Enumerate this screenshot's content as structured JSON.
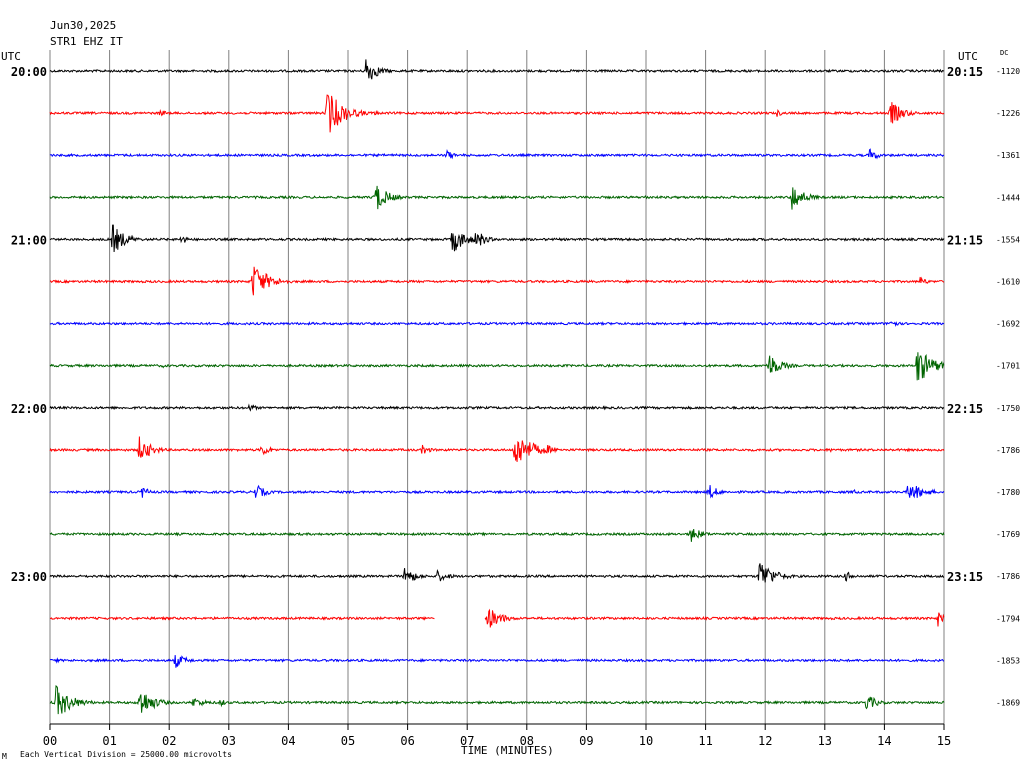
{
  "header": {
    "date": "Jun30,2025",
    "station": "STR1 EHZ IT",
    "left_zone": "UTC",
    "right_zone": "UTC",
    "dc_label": "DC"
  },
  "footer": {
    "mark": "M",
    "scale_note": "Each Vertical Division = 25000.00 microvolts"
  },
  "colors": {
    "grid": "#808080",
    "traces": [
      "#000000",
      "#ff0000",
      "#0000ff",
      "#006400"
    ]
  },
  "chart_data": {
    "type": "line",
    "title": "",
    "xlabel": "TIME (MINUTES)",
    "ylabel": "",
    "xlim": [
      0,
      15
    ],
    "x_ticks": [
      "00",
      "01",
      "02",
      "03",
      "04",
      "05",
      "06",
      "07",
      "08",
      "09",
      "10",
      "11",
      "12",
      "13",
      "14",
      "15"
    ],
    "rows": 16,
    "left_hour_labels": [
      {
        "row": 0,
        "label": "20:00"
      },
      {
        "row": 4,
        "label": "21:00"
      },
      {
        "row": 8,
        "label": "22:00"
      },
      {
        "row": 12,
        "label": "23:00"
      }
    ],
    "right_hour_labels": [
      {
        "row": 0,
        "label": "20:15"
      },
      {
        "row": 4,
        "label": "21:15"
      },
      {
        "row": 8,
        "label": "22:15"
      },
      {
        "row": 12,
        "label": "23:15"
      }
    ],
    "dc_offsets": [
      "-1120",
      "-1226",
      "-1361",
      "-1444",
      "-1554",
      "-1610",
      "-1692",
      "-1701",
      "-1750",
      "-1786",
      "-1780",
      "-1769",
      "-1786",
      "-1794",
      "-1853",
      "-1869"
    ],
    "series": [
      {
        "events": [
          {
            "t": 0.8,
            "amp": 0.12,
            "dur": 0.12
          },
          {
            "t": 5.3,
            "amp": 0.9,
            "dur": 0.3
          }
        ]
      },
      {
        "events": [
          {
            "t": 1.85,
            "amp": 0.2,
            "dur": 0.25
          },
          {
            "t": 4.65,
            "amp": 1.4,
            "dur": 0.45
          },
          {
            "t": 5.45,
            "amp": 0.15,
            "dur": 0.15
          },
          {
            "t": 12.2,
            "amp": 0.2,
            "dur": 0.2
          },
          {
            "t": 14.1,
            "amp": 0.75,
            "dur": 0.35
          }
        ]
      },
      {
        "events": [
          {
            "t": 6.65,
            "amp": 0.3,
            "dur": 0.25
          },
          {
            "t": 8.75,
            "amp": 0.1,
            "dur": 0.1
          },
          {
            "t": 13.75,
            "amp": 0.4,
            "dur": 0.25
          }
        ]
      },
      {
        "events": [
          {
            "t": 5.45,
            "amp": 0.9,
            "dur": 0.35
          },
          {
            "t": 10.0,
            "amp": 0.15,
            "dur": 0.2
          },
          {
            "t": 12.45,
            "amp": 0.8,
            "dur": 0.35
          }
        ]
      },
      {
        "events": [
          {
            "t": 1.05,
            "amp": 0.9,
            "dur": 0.35
          },
          {
            "t": 2.2,
            "amp": 0.3,
            "dur": 0.2
          },
          {
            "t": 6.75,
            "amp": 0.8,
            "dur": 0.4
          },
          {
            "t": 7.15,
            "amp": 0.65,
            "dur": 0.25
          }
        ]
      },
      {
        "events": [
          {
            "t": 3.4,
            "amp": 1.05,
            "dur": 0.45
          },
          {
            "t": 11.5,
            "amp": 0.1,
            "dur": 0.1
          },
          {
            "t": 14.6,
            "amp": 0.3,
            "dur": 0.2
          }
        ]
      },
      {
        "events": [
          {
            "t": 14.1,
            "amp": 0.3,
            "dur": 0.2
          }
        ]
      },
      {
        "events": [
          {
            "t": 1.9,
            "amp": 0.12,
            "dur": 0.15
          },
          {
            "t": 12.05,
            "amp": 0.75,
            "dur": 0.35
          },
          {
            "t": 14.55,
            "amp": 1.1,
            "dur": 0.45
          }
        ]
      },
      {
        "events": [
          {
            "t": 3.35,
            "amp": 0.25,
            "dur": 0.2
          }
        ]
      },
      {
        "events": [
          {
            "t": 1.5,
            "amp": 0.75,
            "dur": 0.35
          },
          {
            "t": 3.55,
            "amp": 0.4,
            "dur": 0.25
          },
          {
            "t": 6.25,
            "amp": 0.35,
            "dur": 0.2
          },
          {
            "t": 7.8,
            "amp": 1.1,
            "dur": 0.5
          },
          {
            "t": 8.35,
            "amp": 0.3,
            "dur": 0.2
          },
          {
            "t": 13.1,
            "amp": 0.12,
            "dur": 0.15
          }
        ]
      },
      {
        "events": [
          {
            "t": 1.55,
            "amp": 0.35,
            "dur": 0.2
          },
          {
            "t": 3.45,
            "amp": 0.45,
            "dur": 0.3
          },
          {
            "t": 11.05,
            "amp": 0.5,
            "dur": 0.25
          },
          {
            "t": 13.5,
            "amp": 0.15,
            "dur": 0.15
          },
          {
            "t": 14.4,
            "amp": 0.6,
            "dur": 0.45
          }
        ]
      },
      {
        "events": [
          {
            "t": 10.75,
            "amp": 0.5,
            "dur": 0.3
          }
        ]
      },
      {
        "events": [
          {
            "t": 2.9,
            "amp": 0.2,
            "dur": 0.15
          },
          {
            "t": 5.95,
            "amp": 0.6,
            "dur": 0.3
          },
          {
            "t": 6.5,
            "amp": 0.35,
            "dur": 0.35
          },
          {
            "t": 11.9,
            "amp": 1.0,
            "dur": 0.4
          },
          {
            "t": 13.35,
            "amp": 0.3,
            "dur": 0.25
          }
        ]
      },
      {
        "gap": [
          6.45,
          7.3
        ],
        "events": [
          {
            "t": 7.35,
            "amp": 0.65,
            "dur": 0.4
          },
          {
            "t": 14.9,
            "amp": 0.5,
            "dur": 0.15
          }
        ]
      },
      {
        "events": [
          {
            "t": 0.1,
            "amp": 0.15,
            "dur": 0.15
          },
          {
            "t": 2.1,
            "amp": 0.45,
            "dur": 0.3
          }
        ]
      },
      {
        "events": [
          {
            "t": 0.1,
            "amp": 1.0,
            "dur": 0.45
          },
          {
            "t": 1.5,
            "amp": 0.9,
            "dur": 0.4
          },
          {
            "t": 2.4,
            "amp": 0.3,
            "dur": 0.4
          },
          {
            "t": 2.85,
            "amp": 0.25,
            "dur": 0.2
          },
          {
            "t": 13.7,
            "amp": 0.5,
            "dur": 0.3
          }
        ]
      }
    ]
  }
}
